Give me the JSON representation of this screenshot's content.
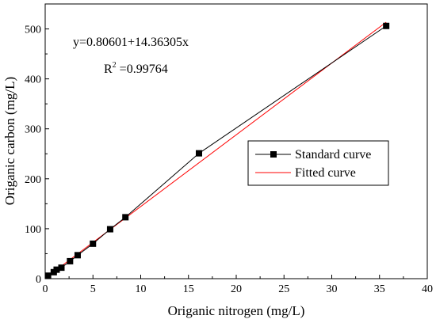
{
  "chart_data": {
    "type": "line",
    "xlabel": "Origanic nitrogen (mg/L)",
    "ylabel": "Origanic carbon (mg/L)",
    "xlim": [
      0,
      40
    ],
    "ylim": [
      0,
      550
    ],
    "x_ticks": [
      0,
      5,
      10,
      15,
      20,
      25,
      30,
      35,
      40
    ],
    "y_ticks": [
      0,
      100,
      200,
      300,
      400,
      500
    ],
    "grid": false,
    "legend_position": "center-right",
    "annotations": {
      "equation": "y=0.80601+14.36305x",
      "r2_prefix": "R",
      "r2_sup": "2",
      "r2_value": " =0.99764"
    },
    "fit": {
      "intercept": 0.80601,
      "slope": 14.36305
    },
    "series": [
      {
        "name": "Standard curve",
        "color": "#000000",
        "marker": "square",
        "x": [
          0.3,
          0.9,
          1.2,
          1.7,
          2.6,
          3.4,
          5.0,
          6.8,
          8.4,
          16.1,
          35.7
        ],
        "y": [
          6,
          13,
          18,
          22,
          35,
          47,
          70,
          99,
          123,
          251,
          506
        ]
      },
      {
        "name": "Fitted curve",
        "color": "#ff0000",
        "marker": "none",
        "x": [
          0,
          35.7
        ],
        "y": [
          0.80601,
          513.55
        ]
      }
    ]
  }
}
